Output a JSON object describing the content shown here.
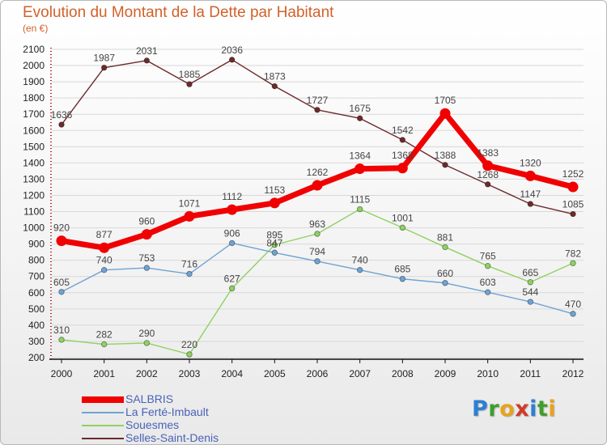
{
  "header": {
    "title": "Evolution du Montant de la Dette par Habitant",
    "subtitle": "(en €)"
  },
  "logo": {
    "text": "Proxiti",
    "letters": [
      {
        "ch": "P",
        "color": "#2d7fd3"
      },
      {
        "ch": "r",
        "color": "#3f9e2c"
      },
      {
        "ch": "o",
        "color": "#e8a31c"
      },
      {
        "ch": "x",
        "color": "#d03b2a"
      },
      {
        "ch": "i",
        "color": "#2d7fd3"
      },
      {
        "ch": "t",
        "color": "#3f9e2c"
      },
      {
        "ch": "i",
        "color": "#e8a31c"
      }
    ]
  },
  "chart_data": {
    "type": "line",
    "title": "Evolution du Montant de la Dette par Habitant",
    "subtitle": "(en €)",
    "x": [
      "2000",
      "2001",
      "2002",
      "2003",
      "2004",
      "2005",
      "2006",
      "2007",
      "2008",
      "2009",
      "2010",
      "2011",
      "2012"
    ],
    "ylim": [
      200,
      2100
    ],
    "yticks": [
      200,
      300,
      400,
      500,
      600,
      700,
      800,
      900,
      1000,
      1100,
      1200,
      1300,
      1400,
      1500,
      1600,
      1700,
      1800,
      1900,
      2000,
      2100
    ],
    "grid": "horizontal",
    "legend": "bottom-left",
    "series": [
      {
        "name": "Selles-Saint-Denis",
        "color": "#6e2a2a",
        "values": [
          1636,
          1987,
          2031,
          1885,
          2036,
          1873,
          1727,
          1675,
          1542,
          1388,
          1268,
          1147,
          1085
        ],
        "labels": [
          "1636",
          "1987",
          "2031",
          "1885",
          "2036",
          "1873",
          "1727",
          "1675",
          "1542",
          "1388",
          "1268",
          "1147",
          "1085"
        ]
      },
      {
        "name": "Souesmes",
        "color": "#8fd162",
        "values": [
          310,
          282,
          290,
          220,
          627,
          895,
          963,
          1115,
          1001,
          881,
          765,
          665,
          782
        ],
        "labels": [
          "310",
          "282",
          "290",
          "220",
          "627",
          "895",
          "963",
          "1115",
          "1001",
          "881",
          "765",
          "665",
          "782"
        ]
      },
      {
        "name": "La Ferté-Imbault",
        "color": "#6fa3d3",
        "values": [
          605,
          740,
          753,
          716,
          906,
          847,
          794,
          740,
          685,
          660,
          603,
          544,
          470
        ],
        "labels": [
          "605",
          "740",
          "753",
          "716",
          "906",
          "847",
          "794",
          "740",
          "685",
          "660",
          "603",
          "544",
          "470"
        ]
      },
      {
        "name": "SALBRIS",
        "color": "#f00000",
        "values": [
          920,
          877,
          960,
          1071,
          1112,
          1153,
          1262,
          1364,
          1368,
          1705,
          1383,
          1320,
          1252
        ],
        "labels": [
          "920",
          "877",
          "960",
          "1071",
          "1112",
          "1153",
          "1262",
          "1364",
          "1368",
          "1705",
          "1383",
          "1320",
          "1252"
        ]
      }
    ],
    "legend_entries": [
      {
        "name": "SALBRIS",
        "color": "#f00000"
      },
      {
        "name": "La Ferté-Imbault",
        "color": "#6fa3d3"
      },
      {
        "name": "Souesmes",
        "color": "#8fd162"
      },
      {
        "name": "Selles-Saint-Denis",
        "color": "#6e2a2a"
      }
    ]
  }
}
